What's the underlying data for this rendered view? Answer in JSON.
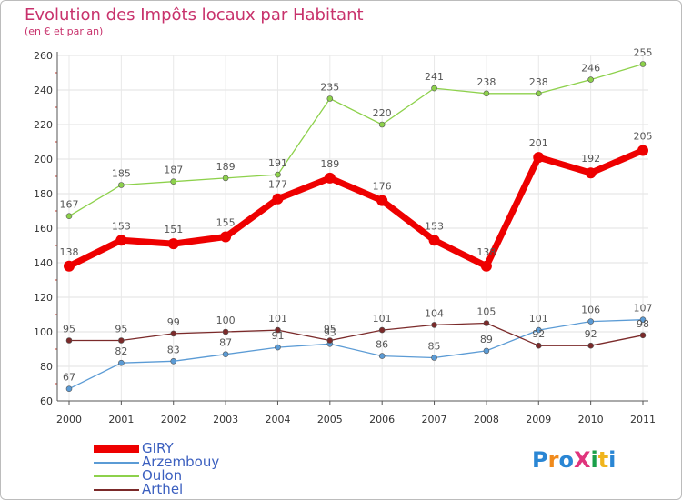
{
  "title": "Evolution des Impôts locaux par Habitant",
  "subtitle": "(en € et par an)",
  "logo": {
    "text": "ProXiti",
    "colors": [
      "#2a86d4",
      "#f08a1c",
      "#2a86d4",
      "#e0347c",
      "#1aa04a",
      "#f0b41c",
      "#2a86d4"
    ]
  },
  "chart_data": {
    "type": "line",
    "title": "Evolution des Impôts locaux par Habitant",
    "subtitle": "(en € et par an)",
    "xlabel": "",
    "ylabel": "",
    "categories": [
      "2000",
      "2001",
      "2002",
      "2003",
      "2004",
      "2005",
      "2006",
      "2007",
      "2008",
      "2009",
      "2010",
      "2011"
    ],
    "ylim": [
      60,
      260
    ],
    "yticks": [
      "60",
      "80",
      "100",
      "120",
      "140",
      "160",
      "180",
      "200",
      "220",
      "240",
      "260"
    ],
    "grid": true,
    "legend_position": "bottom-left",
    "series": [
      {
        "name": "GIRY",
        "color": "#ee0000",
        "values": [
          138,
          153,
          151,
          155,
          177,
          189,
          176,
          153,
          138,
          201,
          192,
          205
        ]
      },
      {
        "name": "Arzembouy",
        "color": "#5b9bd5",
        "values": [
          67,
          82,
          83,
          87,
          91,
          93,
          86,
          85,
          89,
          101,
          106,
          107
        ]
      },
      {
        "name": "Oulon",
        "color": "#8dd14b",
        "values": [
          167,
          185,
          187,
          189,
          191,
          235,
          220,
          241,
          238,
          238,
          246,
          255
        ]
      },
      {
        "name": "Arthel",
        "color": "#7b2a2a",
        "values": [
          95,
          95,
          99,
          100,
          101,
          95,
          101,
          104,
          105,
          92,
          92,
          98
        ]
      }
    ]
  }
}
